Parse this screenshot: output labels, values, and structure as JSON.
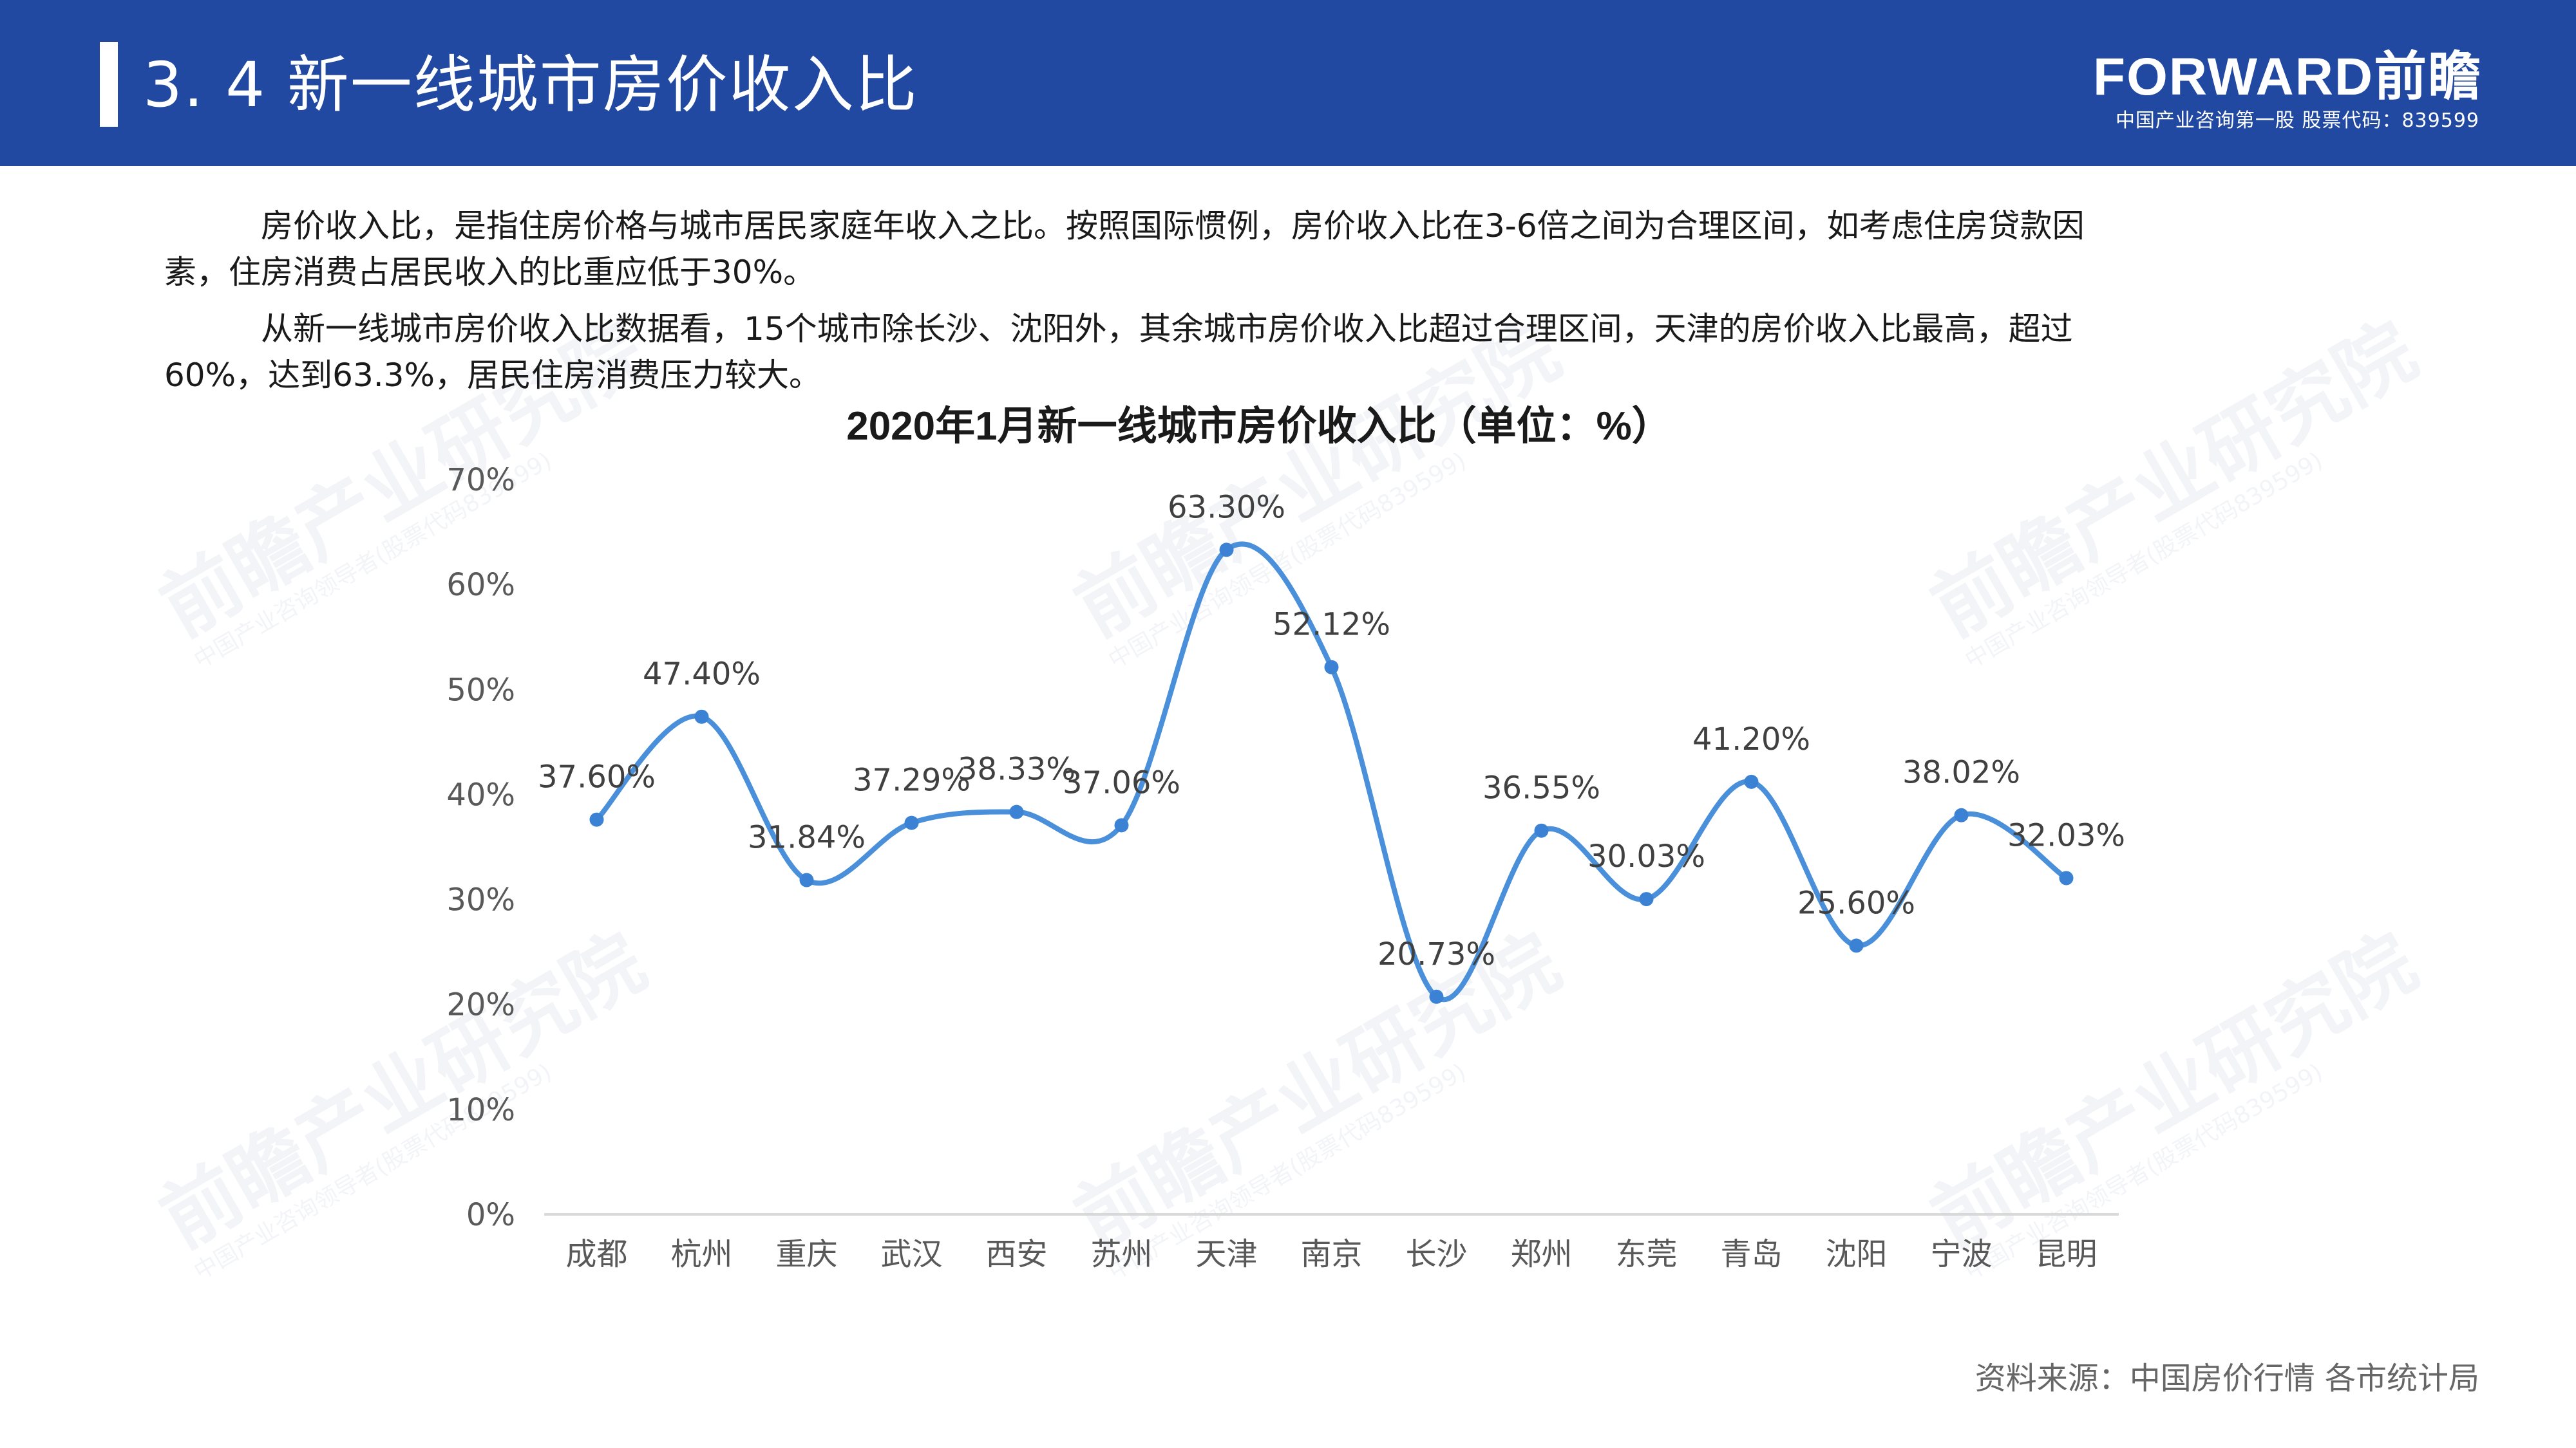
{
  "header": {
    "title": "3. 4  新一线城市房价收入比",
    "logo_text": "FORWARD前瞻",
    "logo_sub": "中国产业咨询第一股  股票代码：839599"
  },
  "body": {
    "paragraph1_line1": "房价收入比，是指住房价格与城市居民家庭年收入之比。按照国际惯例，房价收入比在3-6倍之间为合理区间，如考虑住房贷款因",
    "paragraph1_line2": "素，住房消费占居民收入的比重应低于30%。",
    "paragraph2_line1": "从新一线城市房价收入比数据看，15个城市除长沙、沈阳外，其余城市房价收入比超过合理区间，天津的房价收入比最高，超过",
    "paragraph2_line2": "60%，达到63.3%，居民住房消费压力较大。"
  },
  "watermark": {
    "main": "前瞻产业研究院",
    "sub": "中国产业咨询领导者(股票代码839599)"
  },
  "chart_data": {
    "type": "line",
    "title": "2020年1月新一线城市房价收入比（单位：%）",
    "categories": [
      "成都",
      "杭州",
      "重庆",
      "武汉",
      "西安",
      "苏州",
      "天津",
      "南京",
      "长沙",
      "郑州",
      "东莞",
      "青岛",
      "沈阳",
      "宁波",
      "昆明"
    ],
    "values": [
      37.6,
      47.4,
      31.84,
      37.29,
      38.33,
      37.06,
      63.3,
      52.12,
      20.73,
      36.55,
      30.03,
      41.2,
      25.6,
      38.02,
      32.03
    ],
    "data_labels": [
      "37.60%",
      "47.40%",
      "31.84%",
      "37.29%",
      "38.33%",
      "37.06%",
      "63.30%",
      "52.12%",
      "20.73%",
      "36.55%",
      "30.03%",
      "41.20%",
      "25.60%",
      "38.02%",
      "32.03%"
    ],
    "y_ticks": [
      "0%",
      "10%",
      "20%",
      "30%",
      "40%",
      "50%",
      "60%",
      "70%"
    ],
    "ylim": [
      0,
      70
    ],
    "smooth": true,
    "grid": false,
    "legend": "none",
    "line_color": "#4a8fd9",
    "marker_color": "#3b82d4"
  },
  "footer": {
    "source": "资料来源：中国房价行情 各市统计局"
  },
  "colors": {
    "header_bg": "#2249a1",
    "text": "#1a1a1a",
    "muted": "#666666"
  }
}
